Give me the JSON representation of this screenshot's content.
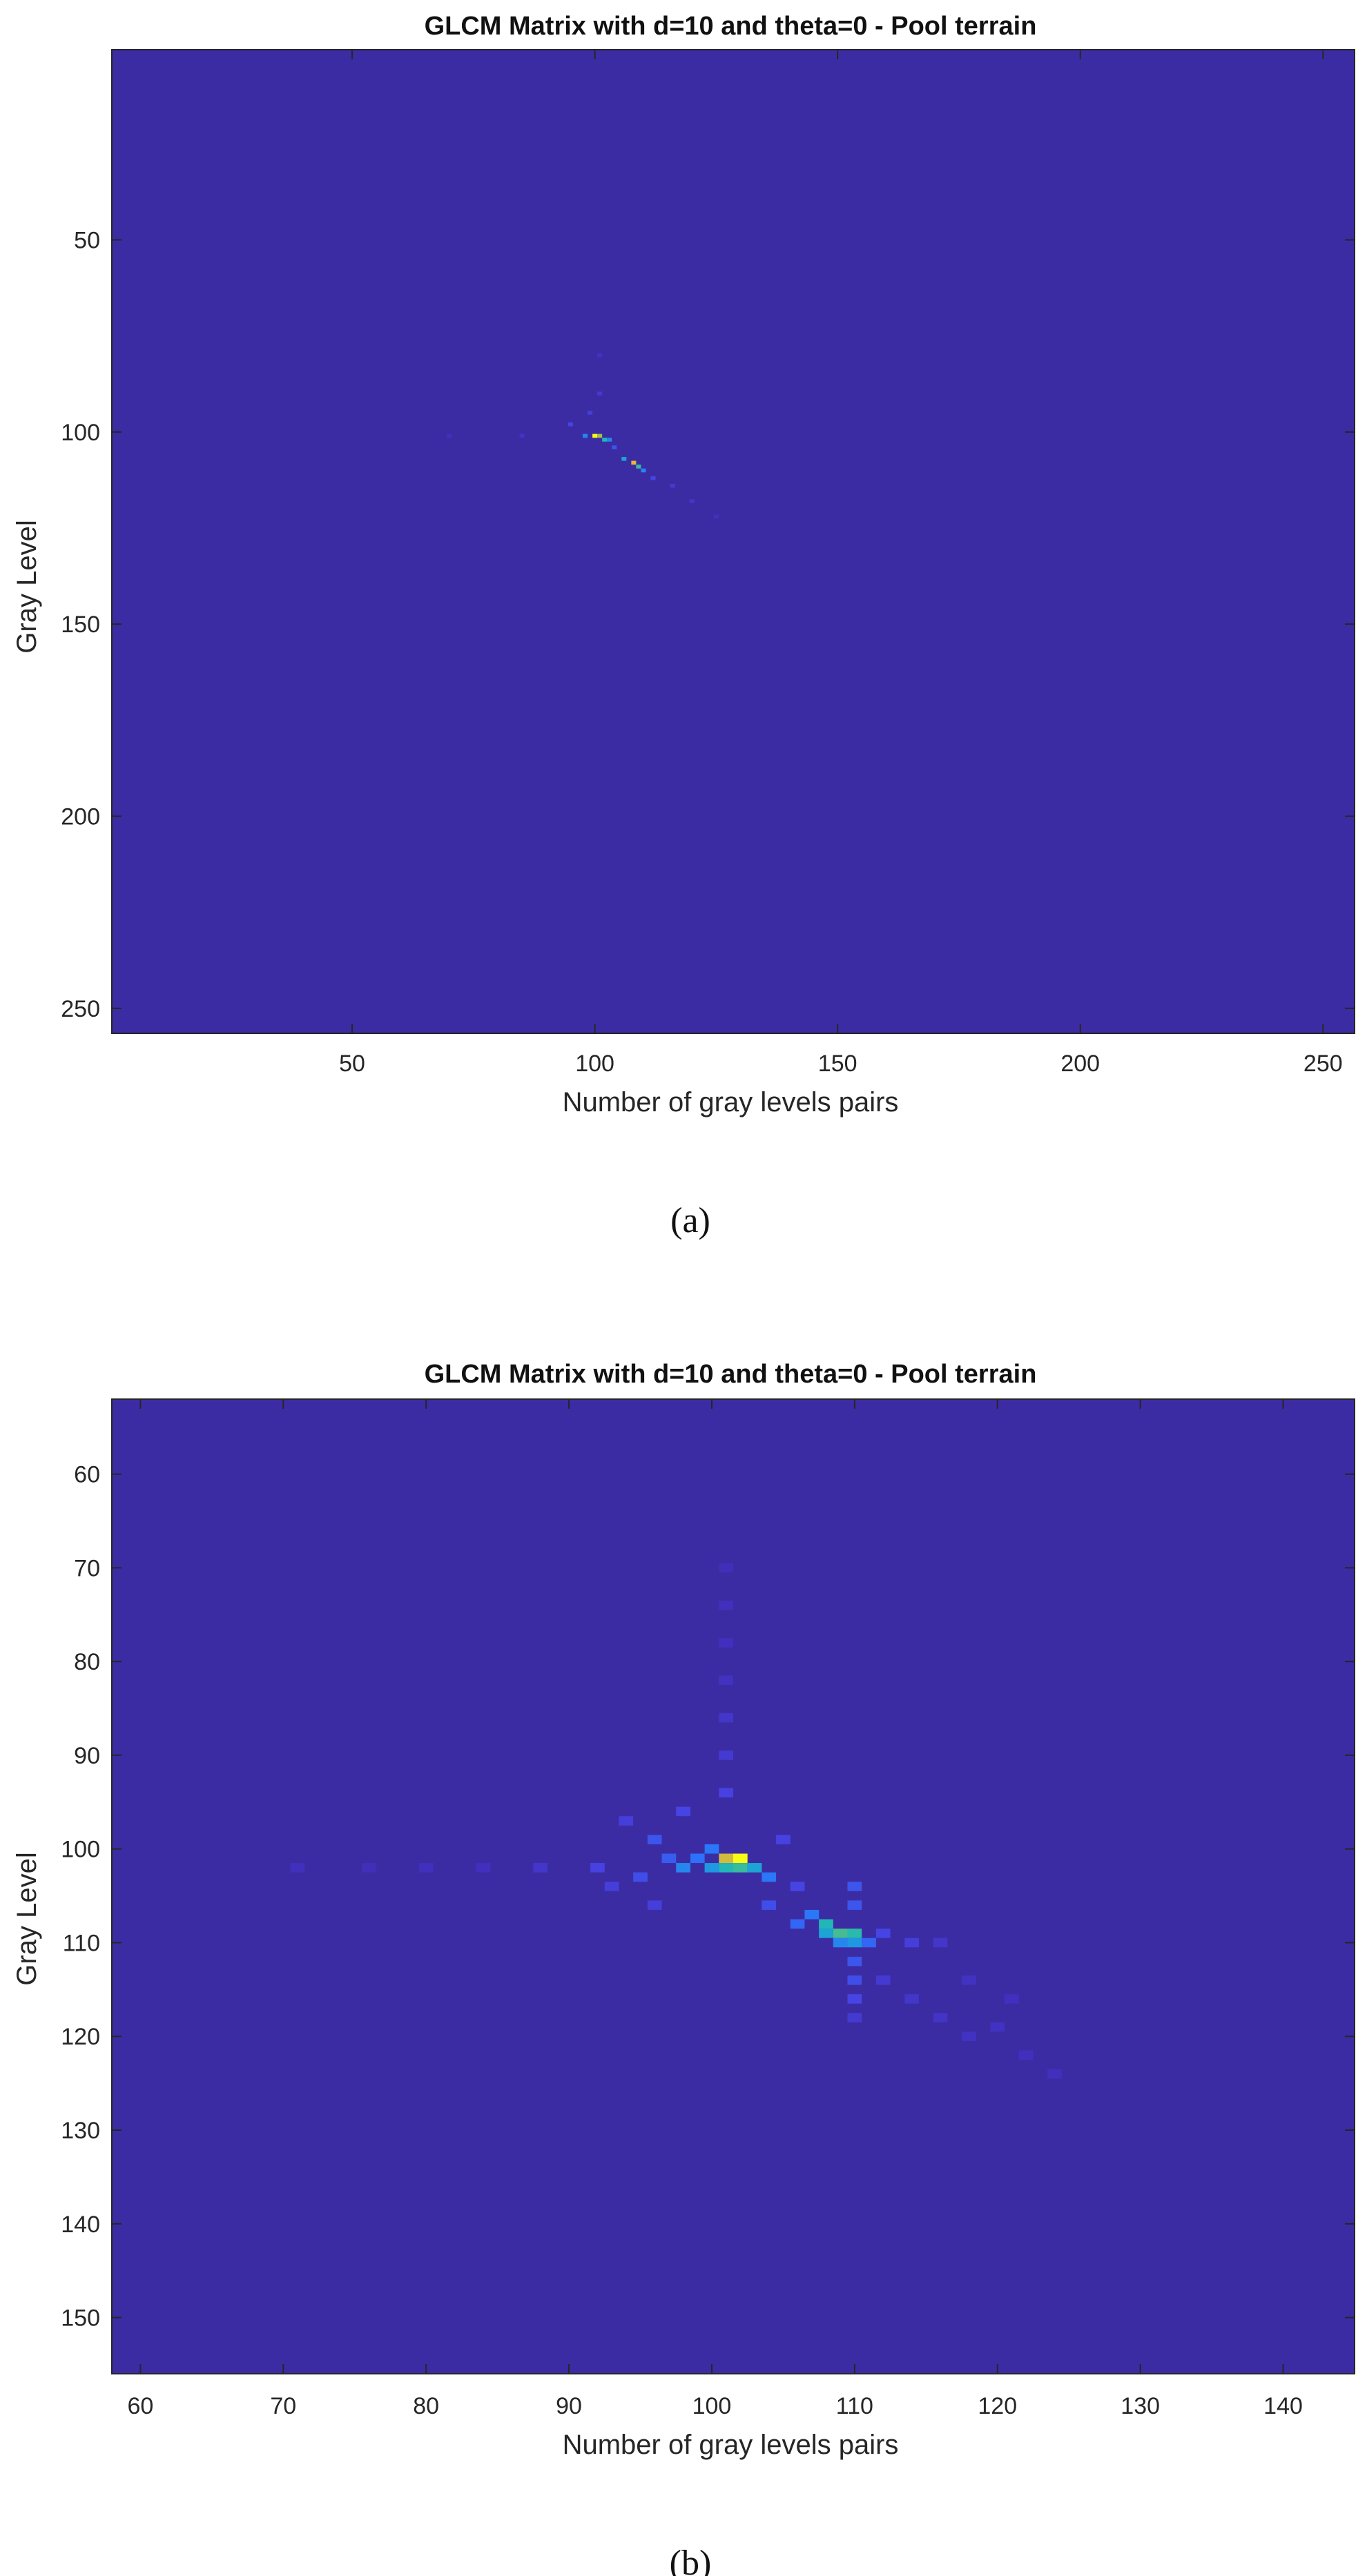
{
  "colors": {
    "background": "#3c2ca3",
    "colormap": [
      "#3e26a8",
      "#4742e3",
      "#2c72fa",
      "#1ca0dc",
      "#23bab0",
      "#8ebf5a",
      "#e8b934",
      "#f9fb15"
    ]
  },
  "chart_data": [
    {
      "type": "heatmap",
      "panel": "(a)",
      "title": "GLCM Matrix with d=10 and theta=0 - Pool terrain",
      "xlabel": "Number of gray levels pairs",
      "ylabel": "Gray Level",
      "xlim": [
        0.5,
        256.5
      ],
      "ylim": [
        0.5,
        256.5
      ],
      "y_reversed": true,
      "xticks": [
        50,
        100,
        150,
        200,
        250
      ],
      "yticks": [
        50,
        100,
        150,
        200,
        250
      ],
      "background_value": 0,
      "cells": [
        [
          100,
          101,
          1.0
        ],
        [
          101,
          101,
          0.75
        ],
        [
          102,
          102,
          0.55
        ],
        [
          108,
          108,
          0.85
        ],
        [
          109,
          109,
          0.6
        ],
        [
          98,
          101,
          0.35
        ],
        [
          103,
          102,
          0.35
        ],
        [
          106,
          107,
          0.45
        ],
        [
          110,
          110,
          0.35
        ],
        [
          95,
          98,
          0.15
        ],
        [
          104,
          104,
          0.2
        ],
        [
          112,
          112,
          0.15
        ],
        [
          99,
          95,
          0.12
        ],
        [
          101,
          90,
          0.1
        ],
        [
          101,
          80,
          0.06
        ],
        [
          85,
          101,
          0.07
        ],
        [
          70,
          101,
          0.05
        ],
        [
          116,
          114,
          0.1
        ],
        [
          120,
          118,
          0.08
        ],
        [
          125,
          122,
          0.06
        ]
      ]
    },
    {
      "type": "heatmap",
      "panel": "(b)",
      "title": "GLCM Matrix with d=10 and theta=0 - Pool terrain",
      "xlabel": "Number of gray levels pairs",
      "ylabel": "Gray Level",
      "xlim": [
        58,
        145
      ],
      "ylim": [
        52,
        156
      ],
      "y_reversed": true,
      "xticks": [
        60,
        70,
        80,
        90,
        100,
        110,
        120,
        130,
        140
      ],
      "yticks": [
        60,
        70,
        80,
        90,
        100,
        110,
        120,
        130,
        140,
        150
      ],
      "background_value": 0,
      "cells": [
        [
          101,
          101,
          0.82
        ],
        [
          102,
          101,
          1.0
        ],
        [
          101,
          102,
          0.55
        ],
        [
          102,
          102,
          0.6
        ],
        [
          103,
          102,
          0.45
        ],
        [
          100,
          102,
          0.4
        ],
        [
          98,
          102,
          0.35
        ],
        [
          104,
          103,
          0.3
        ],
        [
          100,
          100,
          0.3
        ],
        [
          99,
          101,
          0.28
        ],
        [
          108,
          108,
          0.55
        ],
        [
          109,
          109,
          0.62
        ],
        [
          110,
          109,
          0.58
        ],
        [
          108,
          109,
          0.45
        ],
        [
          110,
          110,
          0.4
        ],
        [
          109,
          110,
          0.35
        ],
        [
          107,
          107,
          0.3
        ],
        [
          111,
          110,
          0.25
        ],
        [
          106,
          108,
          0.25
        ],
        [
          110,
          104,
          0.2
        ],
        [
          110,
          106,
          0.2
        ],
        [
          110,
          112,
          0.2
        ],
        [
          110,
          114,
          0.18
        ],
        [
          110,
          116,
          0.15
        ],
        [
          110,
          118,
          0.1
        ],
        [
          112,
          109,
          0.15
        ],
        [
          114,
          110,
          0.12
        ],
        [
          116,
          110,
          0.08
        ],
        [
          96,
          99,
          0.2
        ],
        [
          97,
          101,
          0.22
        ],
        [
          95,
          103,
          0.18
        ],
        [
          94,
          97,
          0.12
        ],
        [
          93,
          104,
          0.12
        ],
        [
          92,
          102,
          0.14
        ],
        [
          105,
          99,
          0.14
        ],
        [
          104,
          106,
          0.18
        ],
        [
          106,
          104,
          0.15
        ],
        [
          98,
          96,
          0.15
        ],
        [
          96,
          106,
          0.12
        ],
        [
          112,
          114,
          0.1
        ],
        [
          114,
          116,
          0.08
        ],
        [
          116,
          118,
          0.07
        ],
        [
          118,
          120,
          0.06
        ],
        [
          120,
          119,
          0.06
        ],
        [
          122,
          122,
          0.05
        ],
        [
          124,
          124,
          0.05
        ],
        [
          118,
          114,
          0.06
        ],
        [
          121,
          116,
          0.05
        ],
        [
          101,
          94,
          0.14
        ],
        [
          101,
          90,
          0.1
        ],
        [
          101,
          86,
          0.08
        ],
        [
          101,
          82,
          0.06
        ],
        [
          101,
          78,
          0.05
        ],
        [
          101,
          74,
          0.05
        ],
        [
          101,
          70,
          0.04
        ],
        [
          88,
          102,
          0.08
        ],
        [
          84,
          102,
          0.05
        ],
        [
          80,
          102,
          0.05
        ],
        [
          76,
          102,
          0.04
        ],
        [
          71,
          102,
          0.05
        ]
      ]
    }
  ],
  "panels": [
    {
      "caption": "(a)"
    },
    {
      "caption": "(b)"
    }
  ]
}
